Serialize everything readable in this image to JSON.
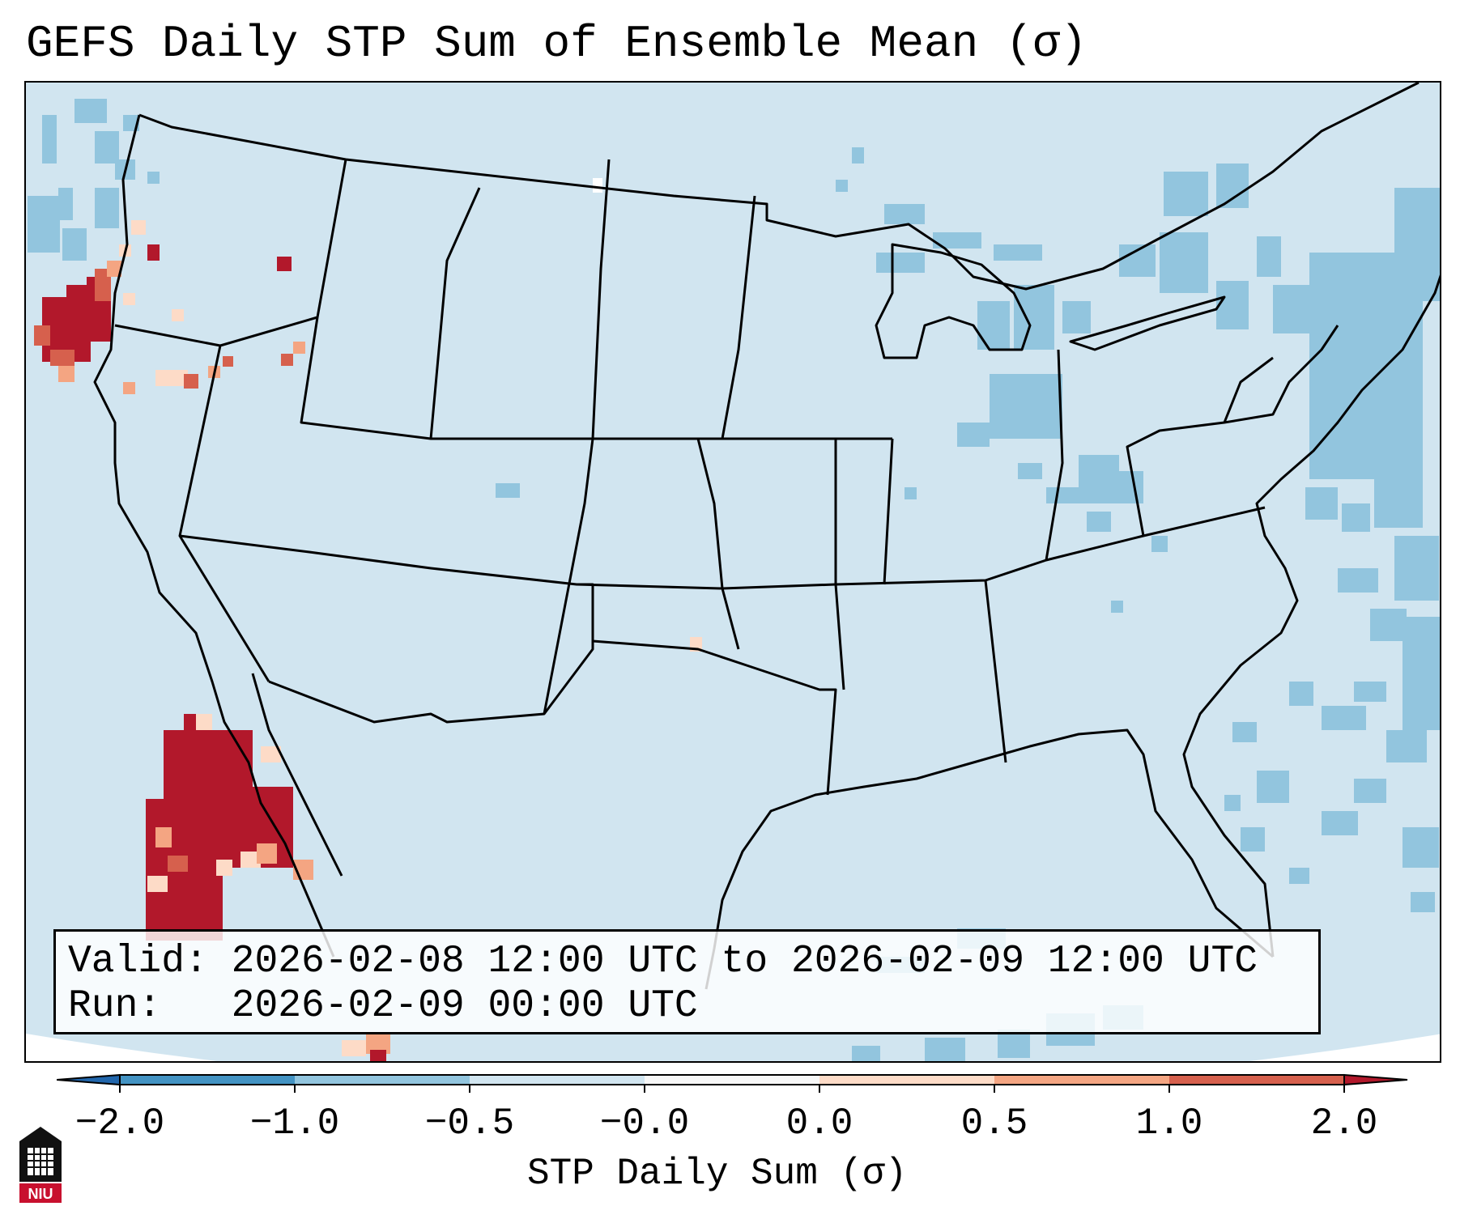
{
  "title": "GEFS Daily STP Sum of Ensemble Mean (σ)",
  "info": {
    "valid_label": "Valid:",
    "valid_value": "2026-02-08 12:00 UTC to 2026-02-09 12:00 UTC",
    "run_label": "Run:",
    "run_value": "2026-02-09 00:00 UTC"
  },
  "colorbar": {
    "label": "STP Daily Sum (σ)",
    "ticks": [
      "−2.0",
      "−1.0",
      "−0.5",
      "−0.0",
      "0.0",
      "0.5",
      "1.0",
      "2.0"
    ],
    "bins": [
      {
        "from": -2.0,
        "to": -1.0,
        "color": "#4393c3"
      },
      {
        "from": -1.0,
        "to": -0.5,
        "color": "#92c5de"
      },
      {
        "from": -0.5,
        "to": -0.0,
        "color": "#d1e5f0"
      },
      {
        "from": -0.0,
        "to": 0.0,
        "color": "#f7f7f7"
      },
      {
        "from": 0.0,
        "to": 0.5,
        "color": "#fddbc7"
      },
      {
        "from": 0.5,
        "to": 1.0,
        "color": "#f4a582"
      },
      {
        "from": 1.0,
        "to": 2.0,
        "color": "#d6604d"
      }
    ],
    "under_color": "#2166ac",
    "over_color": "#b2182b"
  },
  "map": {
    "background_color": "#d1e5f0",
    "ocean_outside_color": "#ffffff",
    "anomalies": [
      {
        "region": "Oregon coast",
        "level": "over 2.0"
      },
      {
        "region": "Eastern Pacific west of Baja",
        "level": "over 2.0"
      },
      {
        "region": "Atlantic off East Coast",
        "level": "-1.0 to -0.5"
      },
      {
        "region": "Great Lakes",
        "level": "-1.0 to -0.5"
      }
    ]
  },
  "logo_text": "NIU"
}
